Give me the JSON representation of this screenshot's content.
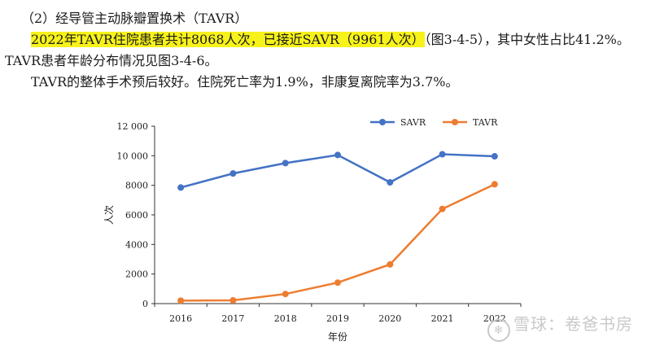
{
  "text": {
    "heading": "（2）经导管主动脉瓣置换术（TAVR）",
    "para_highlight": "2022年TAVR住院患者共计8068人次，已接近SAVR（9961人次）",
    "para_rest": "（图3-4-5），其中女性占比41.2%。",
    "para_line2": "TAVR患者年龄分布情况见图3-4-6。",
    "para_line3": "TAVR的整体手术预后较好。住院死亡率为1.9%，非康复离院率为3.7%。"
  },
  "watermark": {
    "text": "雪球：卷爸书房"
  },
  "chart_data": {
    "type": "line",
    "x": [
      "2016",
      "2017",
      "2018",
      "2019",
      "2020",
      "2021",
      "2022"
    ],
    "series": [
      {
        "name": "SAVR",
        "color": "#4472c4",
        "values": [
          7850,
          8800,
          9500,
          10050,
          8200,
          10100,
          9961
        ]
      },
      {
        "name": "TAVR",
        "color": "#ed7d31",
        "values": [
          200,
          220,
          650,
          1420,
          2650,
          6400,
          8068
        ]
      }
    ],
    "ylim": [
      0,
      12000
    ],
    "yticks": [
      0,
      2000,
      4000,
      6000,
      8000,
      10000,
      12000
    ],
    "ytick_labels": [
      "0",
      "2000",
      "4000",
      "6000",
      "8000",
      "10 000",
      "12 000"
    ],
    "xlabel": "年份",
    "ylabel": "人次",
    "legend_position": "top-right"
  }
}
